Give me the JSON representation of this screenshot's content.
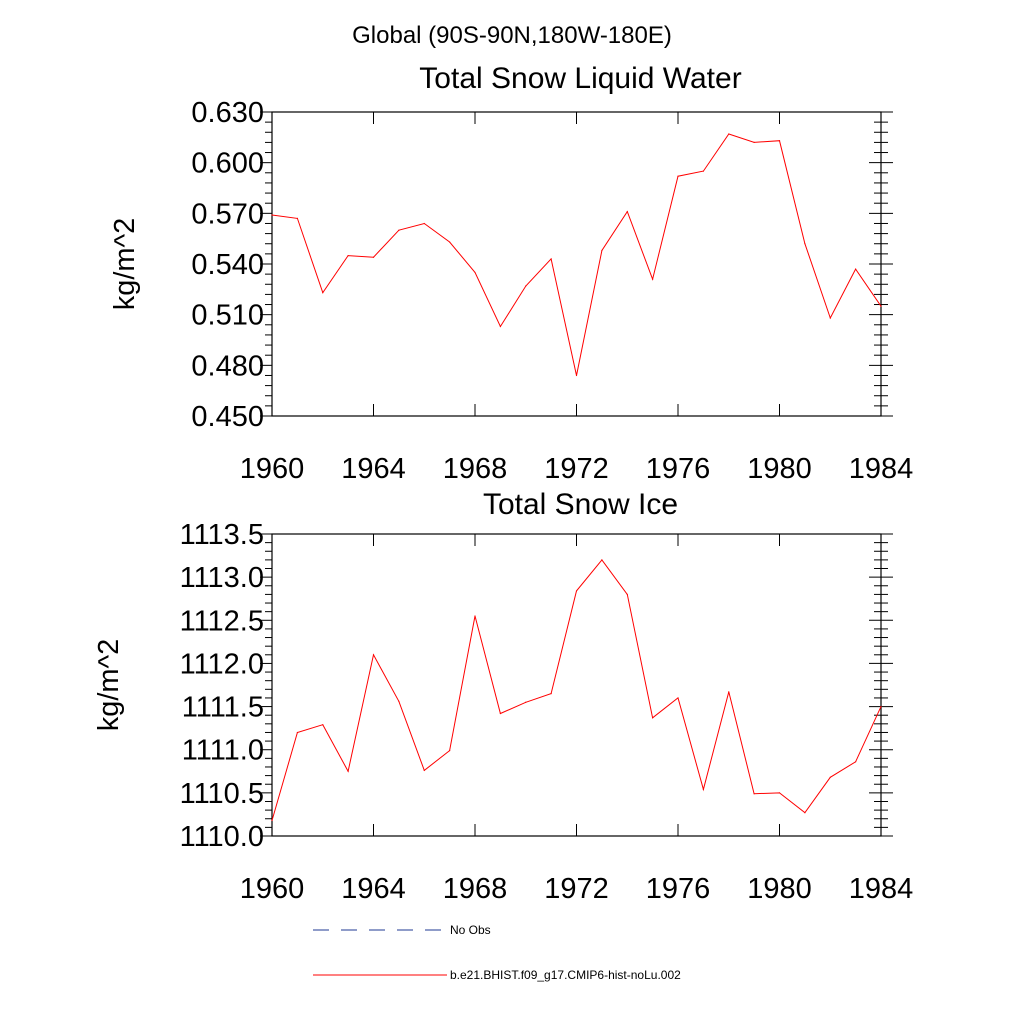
{
  "suptitle": "Global (90S-90N,180W-180E)",
  "legend": [
    {
      "label": "No Obs",
      "color": "#1f3a93",
      "style": "dashed"
    },
    {
      "label": "b.e21.BHIST.f09_g17.CMIP6-hist-noLu.002",
      "color": "#ff0000",
      "style": "solid"
    }
  ],
  "chart_data": [
    {
      "type": "line",
      "title": "Total Snow Liquid Water",
      "xlabel": "",
      "ylabel": "kg/m^2",
      "xlim": [
        1960,
        1984
      ],
      "ylim": [
        0.45,
        0.63
      ],
      "xticks": [
        1960,
        1964,
        1968,
        1972,
        1976,
        1980,
        1984
      ],
      "xtick_labels": [
        "1960",
        "1964",
        "1968",
        "1972",
        "1976",
        "1980",
        "1984"
      ],
      "yticks": [
        0.45,
        0.48,
        0.51,
        0.54,
        0.57,
        0.6,
        0.63
      ],
      "ytick_labels": [
        "0.450",
        "0.480",
        "0.510",
        "0.540",
        "0.570",
        "0.600",
        "0.630"
      ],
      "grid": false,
      "series": [
        {
          "name": "b.e21.BHIST.f09_g17.CMIP6-hist-noLu.002",
          "color": "#ff0000",
          "x": [
            1960,
            1961,
            1962,
            1963,
            1964,
            1965,
            1966,
            1967,
            1968,
            1969,
            1970,
            1971,
            1972,
            1973,
            1974,
            1975,
            1976,
            1977,
            1978,
            1979,
            1980,
            1981,
            1982,
            1983,
            1984
          ],
          "y": [
            0.569,
            0.567,
            0.523,
            0.545,
            0.544,
            0.56,
            0.564,
            0.553,
            0.535,
            0.503,
            0.527,
            0.543,
            0.474,
            0.548,
            0.571,
            0.531,
            0.592,
            0.595,
            0.617,
            0.612,
            0.613,
            0.552,
            0.508,
            0.537,
            0.515
          ]
        }
      ]
    },
    {
      "type": "line",
      "title": "Total Snow Ice",
      "xlabel": "",
      "ylabel": "kg/m^2",
      "xlim": [
        1960,
        1984
      ],
      "ylim": [
        1110.0,
        1113.5
      ],
      "xticks": [
        1960,
        1964,
        1968,
        1972,
        1976,
        1980,
        1984
      ],
      "xtick_labels": [
        "1960",
        "1964",
        "1968",
        "1972",
        "1976",
        "1980",
        "1984"
      ],
      "yticks": [
        1110.0,
        1110.5,
        1111.0,
        1111.5,
        1112.0,
        1112.5,
        1113.0,
        1113.5
      ],
      "ytick_labels": [
        "1110.0",
        "1110.5",
        "1111.0",
        "1111.5",
        "1112.0",
        "1112.5",
        "1113.0",
        "1113.5"
      ],
      "grid": false,
      "series": [
        {
          "name": "b.e21.BHIST.f09_g17.CMIP6-hist-noLu.002",
          "color": "#ff0000",
          "x": [
            1960,
            1961,
            1962,
            1963,
            1964,
            1965,
            1966,
            1967,
            1968,
            1969,
            1970,
            1971,
            1972,
            1973,
            1974,
            1975,
            1976,
            1977,
            1978,
            1979,
            1980,
            1981,
            1982,
            1983,
            1984
          ],
          "y": [
            1110.18,
            1111.2,
            1111.29,
            1110.75,
            1112.1,
            1111.56,
            1110.76,
            1110.99,
            1112.55,
            1111.42,
            1111.55,
            1111.65,
            1112.84,
            1113.2,
            1112.8,
            1111.37,
            1111.6,
            1110.54,
            1111.67,
            1110.49,
            1110.5,
            1110.27,
            1110.68,
            1110.86,
            1111.5
          ]
        }
      ]
    }
  ]
}
